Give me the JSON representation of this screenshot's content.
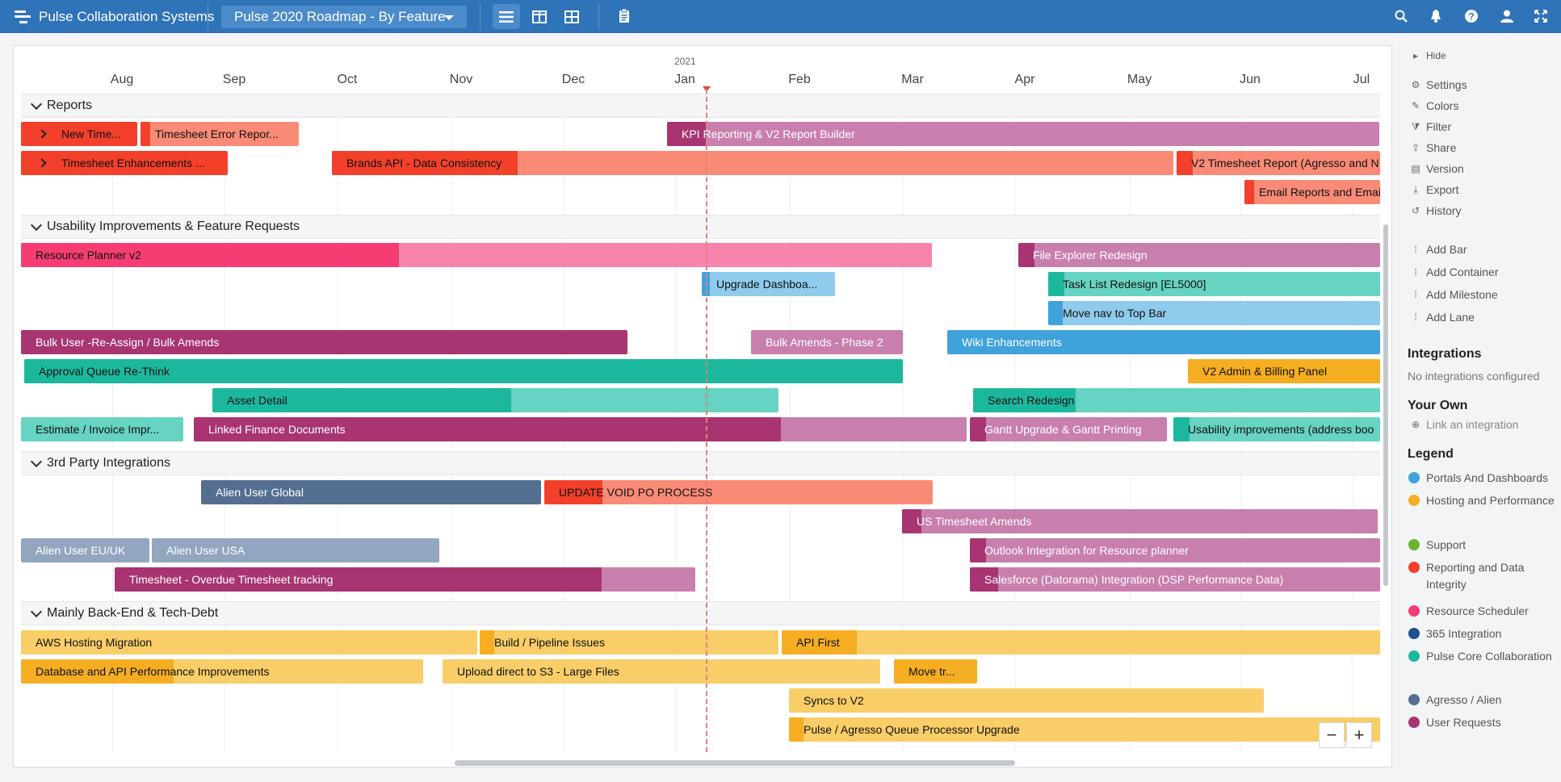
{
  "topbar": {
    "brand": "Pulse Collaboration Systems",
    "roadmap": "Pulse 2020 Roadmap - By Feature",
    "icons": [
      "search-icon",
      "bell-icon",
      "help-icon",
      "user-icon",
      "fullscreen-icon"
    ]
  },
  "timeline": {
    "year": "2021",
    "months": [
      "Aug",
      "Sep",
      "Oct",
      "Nov",
      "Dec",
      "Jan",
      "Feb",
      "Mar",
      "Apr",
      "May",
      "Jun",
      "Jul"
    ]
  },
  "lanes": [
    {
      "title": "Reports"
    },
    {
      "title": "Usability Improvements & Feature Requests"
    },
    {
      "title": "3rd Party Integrations"
    },
    {
      "title": "Mainly Back-End & Tech-Debt"
    }
  ],
  "bars": [
    {
      "label": "New Time..."
    },
    {
      "label": "Timesheet Error Repor..."
    },
    {
      "label": "KPI Reporting & V2 Report Builder"
    },
    {
      "label": "Timesheet Enhancements ..."
    },
    {
      "label": "Brands API - Data Consistency"
    },
    {
      "label": "V2 Timesheet Report (Agresso and N"
    },
    {
      "label": "Email Reports and Emai"
    },
    {
      "label": "Resource Planner v2"
    },
    {
      "label": "File Explorer Redesign"
    },
    {
      "label": "Upgrade Dashboa..."
    },
    {
      "label": "Task List Redesign [EL5000]"
    },
    {
      "label": "Move nav to Top Bar"
    },
    {
      "label": "Bulk User -Re-Assign / Bulk Amends"
    },
    {
      "label": "Bulk Amends - Phase 2"
    },
    {
      "label": "Wiki Enhancements"
    },
    {
      "label": "Approval Queue Re-Think"
    },
    {
      "label": "V2 Admin & Billing Panel"
    },
    {
      "label": "Asset Detail"
    },
    {
      "label": "Search Redesign"
    },
    {
      "label": "Estimate / Invoice Impr..."
    },
    {
      "label": "Linked Finance Documents"
    },
    {
      "label": "Gantt Upgrade & Gantt Printing"
    },
    {
      "label": "Usability improvements (address boo"
    },
    {
      "label": "Alien User Global"
    },
    {
      "label": "UPDATE VOID PO PROCESS"
    },
    {
      "label": "US Timesheet Amends"
    },
    {
      "label": "Alien User EU/UK"
    },
    {
      "label": "Alien User USA"
    },
    {
      "label": "Outlook Integration for Resource planner"
    },
    {
      "label": "Timesheet - Overdue Timesheet tracking"
    },
    {
      "label": "Salesforce (Datorama) Integration (DSP Performance Data)"
    },
    {
      "label": "AWS Hosting Migration"
    },
    {
      "label": "Build / Pipeline Issues"
    },
    {
      "label": "API First"
    },
    {
      "label": "Database and API Performance Improvements"
    },
    {
      "label": "Upload direct to S3 - Large Files"
    },
    {
      "label": "Move tr..."
    },
    {
      "label": "Syncs to V2"
    },
    {
      "label": "Pulse / Agresso Queue Processor Upgrade"
    }
  ],
  "sidebar": {
    "hide": "Hide",
    "menu": [
      "Settings",
      "Colors",
      "Filter",
      "Share",
      "Version",
      "Export",
      "History"
    ],
    "add": [
      "Add Bar",
      "Add Container",
      "Add Milestone",
      "Add Lane"
    ],
    "integrations_title": "Integrations",
    "integrations_empty": "No integrations configured",
    "your_own": "Your Own",
    "link": "Link an integration",
    "legend_title": "Legend",
    "legend": [
      {
        "label": "Portals And Dashboards",
        "color": "#3fa2db"
      },
      {
        "label": "Hosting and Performance",
        "color": "#f5ad22"
      },
      {
        "label": "Support",
        "color": "#6ab42d"
      },
      {
        "label": "Reporting and Data Integrity",
        "color": "#f2402a"
      },
      {
        "label": "Resource Scheduler",
        "color": "#f53d73"
      },
      {
        "label": "365 Integration",
        "color": "#1d4f91"
      },
      {
        "label": "Pulse Core Collaboration",
        "color": "#1cb89d"
      },
      {
        "label": "Agresso / Alien",
        "color": "#546e91"
      },
      {
        "label": "User Requests",
        "color": "#a83572"
      }
    ]
  },
  "zoom": {
    "out": "−",
    "in": "+"
  }
}
